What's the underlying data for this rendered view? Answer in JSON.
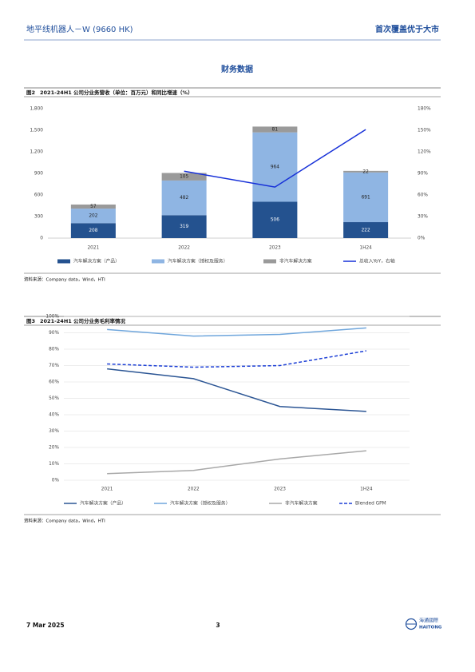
{
  "header": {
    "left": "地平线机器人－W (9660 HK)",
    "right": "首次覆盖优于大市"
  },
  "section_title": "财务数据",
  "chart_data": [
    {
      "type": "bar",
      "label": "图2",
      "title": "2021-24H1 公司分业务营收（单位：百万元）和同比增速（%）",
      "stacked": true,
      "grid": false,
      "categories": [
        "2021",
        "2022",
        "2023",
        "1H24"
      ],
      "series": [
        {
          "name": "汽车解决方案（产品）",
          "color": "#24528f",
          "values": [
            208,
            319,
            506,
            222
          ]
        },
        {
          "name": "汽车解决方案（授权及服务）",
          "color": "#8fb5e3",
          "values": [
            202,
            482,
            964,
            691
          ]
        },
        {
          "name": "非汽车解决方案",
          "color": "#9a9a9a",
          "values": [
            57,
            105,
            81,
            22
          ]
        },
        {
          "name": "总收入YoY，右轴",
          "color": "#1630d8",
          "type": "line",
          "axis": "y2",
          "values": [
            null,
            93,
            71,
            151
          ]
        }
      ],
      "ylim": [
        0,
        1800
      ],
      "yticks": [
        0,
        300,
        600,
        900,
        {
          "value": 1200,
          "label": "1,200"
        },
        {
          "value": 1500,
          "label": "1,500"
        },
        {
          "value": 1800,
          "label": "1,800"
        }
      ],
      "y2lim": [
        0,
        180
      ],
      "y2ticks": [
        {
          "value": 0,
          "label": "0%"
        },
        {
          "value": 30,
          "label": "30%"
        },
        {
          "value": 60,
          "label": "60%"
        },
        {
          "value": 90,
          "label": "90%"
        },
        {
          "value": 120,
          "label": "120%"
        },
        {
          "value": 150,
          "label": "150%"
        },
        {
          "value": 180,
          "label": "180%"
        }
      ],
      "source": "资料来源：Company data，Wind，HTI"
    },
    {
      "type": "line",
      "label": "图3",
      "title": "2021-24H1 公司分业务毛利率情况",
      "grid": true,
      "categories": [
        "2021",
        "2022",
        "2023",
        "1H24"
      ],
      "series": [
        {
          "name": "汽车解决方案（产品）",
          "color": "#2b5594",
          "values": [
            68,
            62,
            45,
            42
          ]
        },
        {
          "name": "汽车解决方案（授权及服务）",
          "color": "#6fa6dc",
          "values": [
            92,
            88,
            89,
            93
          ]
        },
        {
          "name": "非汽车解决方案",
          "color": "#a8a8a8",
          "values": [
            4,
            6,
            13,
            18
          ]
        },
        {
          "name": "Blended GPM",
          "color": "#1c3fd6",
          "dashed": true,
          "values": [
            71,
            69,
            70,
            79
          ]
        }
      ],
      "ylim": [
        0,
        100
      ],
      "yticks": [
        {
          "value": 0,
          "label": "0%"
        },
        {
          "value": 10,
          "label": "10%"
        },
        {
          "value": 20,
          "label": "20%"
        },
        {
          "value": 30,
          "label": "30%"
        },
        {
          "value": 40,
          "label": "40%"
        },
        {
          "value": 50,
          "label": "50%"
        },
        {
          "value": 60,
          "label": "60%"
        },
        {
          "value": 70,
          "label": "70%"
        },
        {
          "value": 80,
          "label": "80%"
        },
        {
          "value": 90,
          "label": "90%"
        },
        {
          "value": 100,
          "label": "100%"
        }
      ],
      "source": "资料来源：Company data，Wind，HTI"
    }
  ],
  "footer": {
    "date": "7 Mar 2025",
    "page": "3",
    "logo_cn": "海通國際",
    "logo_en": "HAITONG"
  }
}
